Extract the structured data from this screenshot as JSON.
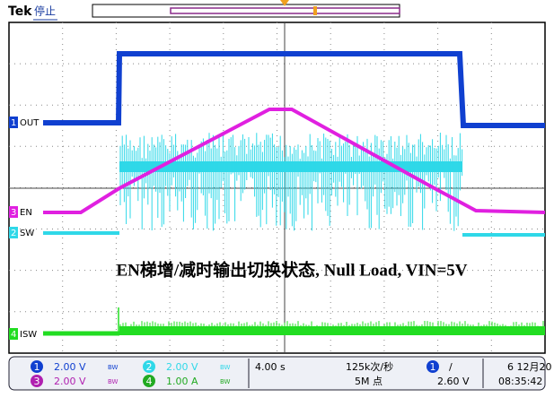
{
  "header": {
    "brand": "Tek",
    "status": "停止"
  },
  "channels": [
    {
      "number": "1",
      "label": "OUT",
      "scale": "2.00 V",
      "bw": "BW"
    },
    {
      "number": "2",
      "label": "SW",
      "scale": "2.00 V",
      "bw": "BW"
    },
    {
      "number": "3",
      "label": "EN",
      "scale": "2.00 V",
      "bw": "BW"
    },
    {
      "number": "4",
      "label": "ISW",
      "scale": "1.00 A",
      "bw": "BW"
    }
  ],
  "annotation": "EN梯增/减时输出切换状态, Null Load, VIN=5V",
  "timebase": {
    "scale": "4.00 s",
    "rate": "125k次/秒",
    "points": "5M 点"
  },
  "trigger": {
    "source": "1",
    "slope": "/",
    "level": "2.60 V"
  },
  "clock": {
    "date": "6 12月20",
    "time": "08:35:42"
  }
}
